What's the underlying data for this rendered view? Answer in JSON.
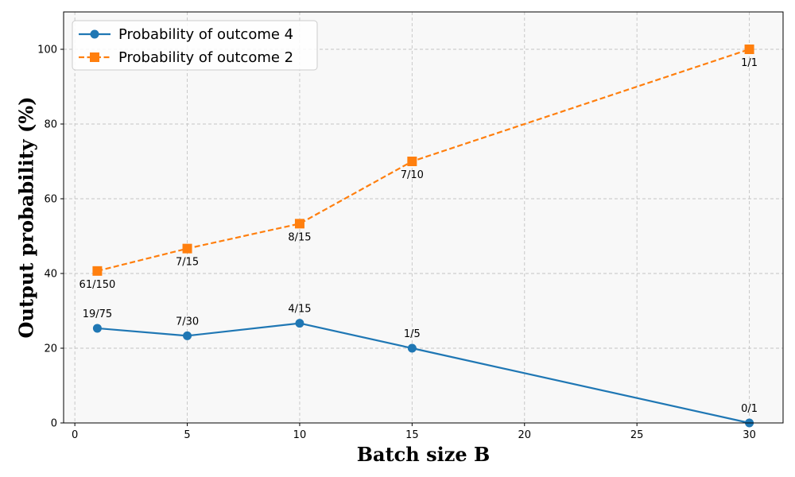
{
  "chart_data": {
    "type": "line",
    "title": "",
    "xlabel": "Batch size B",
    "ylabel": "Output probability (%)",
    "xlim": [
      -0.5,
      31.5
    ],
    "ylim": [
      0,
      110
    ],
    "xticks": [
      0,
      5,
      10,
      15,
      20,
      25,
      30
    ],
    "yticks": [
      0,
      20,
      40,
      60,
      80,
      100
    ],
    "grid": true,
    "legend_position": "top-left",
    "series": [
      {
        "name": "Probability of outcome 4",
        "color": "#1f77b4",
        "marker": "circle",
        "linestyle": "solid",
        "label_position": "above",
        "x": [
          1,
          5,
          10,
          15,
          30
        ],
        "y": [
          25.33,
          23.33,
          26.67,
          20.0,
          0.0
        ],
        "labels": [
          "19/75",
          "7/30",
          "4/15",
          "1/5",
          "0/1"
        ]
      },
      {
        "name": "Probability of outcome 2",
        "color": "#ff7f0e",
        "marker": "square",
        "linestyle": "dashed",
        "label_position": "below",
        "x": [
          1,
          5,
          10,
          15,
          30
        ],
        "y": [
          40.67,
          46.67,
          53.33,
          70.0,
          100.0
        ],
        "labels": [
          "61/150",
          "7/15",
          "8/15",
          "7/10",
          "1/1"
        ]
      }
    ]
  }
}
